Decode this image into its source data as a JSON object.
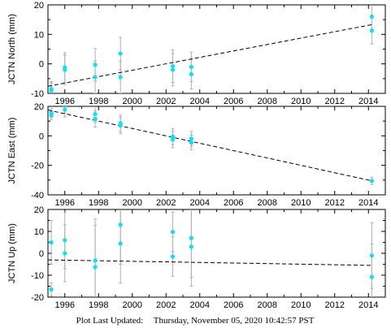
{
  "footer": {
    "label": "Plot Last Updated:",
    "timestamp": "Thursday, November 05, 2020 10:42:57 PST"
  },
  "colors": {
    "point": "#00e5ff",
    "errorbar": "#b0b0b0",
    "trend": "#000000",
    "axis": "#000000"
  },
  "chart_data": [
    {
      "type": "scatter",
      "ylabel": "JCTN North (mm)",
      "xlim": [
        1995.0,
        2015.0
      ],
      "ylim": [
        -10,
        20
      ],
      "yticks": [
        -10,
        0,
        10,
        20
      ],
      "xticks": [
        1996,
        1998,
        2000,
        2002,
        2004,
        2006,
        2008,
        2010,
        2012,
        2014
      ],
      "points": [
        {
          "x": 1995.2,
          "y": -8.5,
          "err": 2.5
        },
        {
          "x": 1995.2,
          "y": -9.0,
          "err": 2.5
        },
        {
          "x": 1996.0,
          "y": -1.2,
          "err": 5.0
        },
        {
          "x": 1996.0,
          "y": -2.0,
          "err": 5.0
        },
        {
          "x": 1997.8,
          "y": -0.3,
          "err": 5.5
        },
        {
          "x": 1997.8,
          "y": -4.5,
          "err": 5.5
        },
        {
          "x": 1999.3,
          "y": 3.5,
          "err": 5.5
        },
        {
          "x": 1999.3,
          "y": -4.5,
          "err": 5.5
        },
        {
          "x": 2002.4,
          "y": -0.8,
          "err": 5.5
        },
        {
          "x": 2002.4,
          "y": -2.0,
          "err": 5.5
        },
        {
          "x": 2003.5,
          "y": -1.0,
          "err": 5.0
        },
        {
          "x": 2003.5,
          "y": -3.5,
          "err": 5.0
        },
        {
          "x": 2014.2,
          "y": 16.0,
          "err": 4.5
        },
        {
          "x": 2014.2,
          "y": 11.3,
          "err": 4.5
        }
      ],
      "trend": {
        "x": [
          1995.0,
          2014.2
        ],
        "y": [
          -7.6,
          13.3
        ]
      }
    },
    {
      "type": "scatter",
      "ylabel": "JCTN East (mm)",
      "xlim": [
        1995.0,
        2015.0
      ],
      "ylim": [
        -40,
        20
      ],
      "yticks": [
        -40,
        -20,
        0,
        20
      ],
      "xticks": [
        1996,
        1998,
        2000,
        2002,
        2004,
        2006,
        2008,
        2010,
        2012,
        2014
      ],
      "points": [
        {
          "x": 1995.2,
          "y": 15.5,
          "err": 3.0
        },
        {
          "x": 1995.2,
          "y": 14.0,
          "err": 3.0
        },
        {
          "x": 1996.0,
          "y": 20.5,
          "err": 5.0
        },
        {
          "x": 1996.0,
          "y": 17.8,
          "err": 5.0
        },
        {
          "x": 1997.8,
          "y": 14.8,
          "err": 5.5
        },
        {
          "x": 1997.8,
          "y": 11.5,
          "err": 5.5
        },
        {
          "x": 1999.3,
          "y": 8.5,
          "err": 5.5
        },
        {
          "x": 1999.3,
          "y": 7.0,
          "err": 5.5
        },
        {
          "x": 2002.4,
          "y": -0.5,
          "err": 5.5
        },
        {
          "x": 2002.4,
          "y": -2.5,
          "err": 5.5
        },
        {
          "x": 2003.5,
          "y": -2.0,
          "err": 5.0
        },
        {
          "x": 2003.5,
          "y": -4.5,
          "err": 5.0
        },
        {
          "x": 2014.2,
          "y": -30.5,
          "err": 2.5
        }
      ],
      "trend": {
        "x": [
          1995.0,
          2014.2
        ],
        "y": [
          17.5,
          -30.5
        ]
      }
    },
    {
      "type": "scatter",
      "ylabel": "JCTN Up (mm)",
      "xlim": [
        1995.0,
        2015.0
      ],
      "ylim": [
        -20,
        20
      ],
      "yticks": [
        -20,
        -10,
        0,
        10,
        20
      ],
      "xticks": [
        1996,
        1998,
        2000,
        2002,
        2004,
        2006,
        2008,
        2010,
        2012,
        2014
      ],
      "points": [
        {
          "x": 1995.2,
          "y": 5.0,
          "err": 10.0
        },
        {
          "x": 1995.2,
          "y": -16.5,
          "err": 3.0
        },
        {
          "x": 1996.0,
          "y": 6.0,
          "err": 13.0
        },
        {
          "x": 1996.0,
          "y": 0.0,
          "err": 13.0
        },
        {
          "x": 1997.8,
          "y": -3.3,
          "err": 19.0
        },
        {
          "x": 1997.8,
          "y": -6.3,
          "err": 19.0
        },
        {
          "x": 1999.3,
          "y": 13.0,
          "err": 18.0
        },
        {
          "x": 1999.3,
          "y": 4.5,
          "err": 18.0
        },
        {
          "x": 2002.4,
          "y": 9.8,
          "err": 9.0
        },
        {
          "x": 2002.4,
          "y": -1.5,
          "err": 9.0
        },
        {
          "x": 2003.5,
          "y": 7.0,
          "err": 18.0
        },
        {
          "x": 2003.5,
          "y": 3.0,
          "err": 18.0
        },
        {
          "x": 2014.2,
          "y": -1.0,
          "err": 15.0
        },
        {
          "x": 2014.2,
          "y": -10.8,
          "err": 15.0
        }
      ],
      "trend": {
        "x": [
          1995.0,
          2014.2
        ],
        "y": [
          -3.0,
          -5.5
        ]
      }
    }
  ]
}
